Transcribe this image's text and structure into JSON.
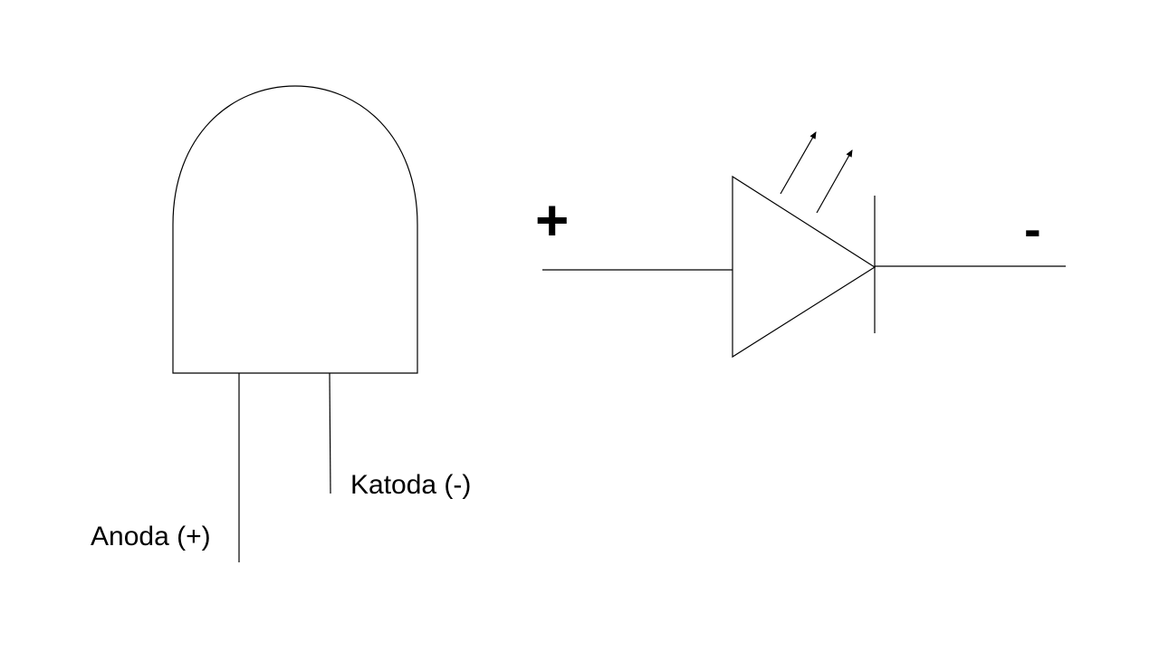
{
  "led_package": {
    "anode_label": "Anoda (+)",
    "cathode_label": "Katoda (-)"
  },
  "led_symbol": {
    "positive_label": "+",
    "negative_label": "-"
  },
  "colors": {
    "stroke": "#000000",
    "background": "#ffffff"
  }
}
